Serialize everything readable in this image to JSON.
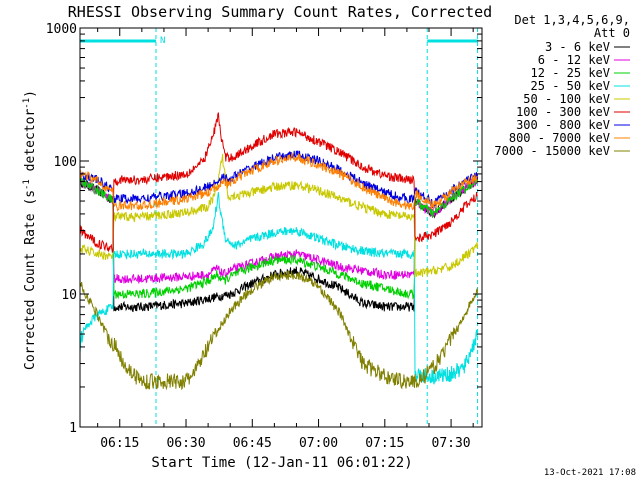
{
  "chart_data": {
    "type": "line",
    "title": "RHESSI Observing Summary Count Rates, Corrected",
    "xlabel": "Start Time (12-Jan-11 06:01:22)",
    "ylabel_main": "Corrected Count Rate (s",
    "ylabel_sup1": "-1",
    "ylabel_mid": " detector",
    "ylabel_sup2": "-1",
    "ylabel_end": ")",
    "y_scale": "log",
    "ylim": [
      1,
      1000
    ],
    "xlim_minutes": [
      6.0,
      97.0
    ],
    "x_ticks": [
      {
        "label": "06:15",
        "min": 15
      },
      {
        "label": "06:30",
        "min": 30
      },
      {
        "label": "06:45",
        "min": 45
      },
      {
        "label": "07:00",
        "min": 60
      },
      {
        "label": "07:15",
        "min": 75
      },
      {
        "label": "07:30",
        "min": 90
      }
    ],
    "y_ticks": [
      {
        "label": "1",
        "value": 1
      },
      {
        "label": "10",
        "value": 10
      },
      {
        "label": "100",
        "value": 100
      },
      {
        "label": "1000",
        "value": 1000
      }
    ],
    "legend": {
      "header1": "Det 1,3,4,5,6,9,",
      "header2": "Att 0",
      "placement": "right"
    },
    "annotations": {
      "night_marker": "N",
      "footer_date": "13-Oct-2021 17:08"
    },
    "night_intervals_minutes": [
      [
        6.0,
        23.2
      ],
      [
        84.6,
        96.0
      ]
    ],
    "series": [
      {
        "name": "3 - 6 keV",
        "color": "#000000",
        "x": [
          6,
          10,
          13.5,
          13.6,
          20,
          30,
          40,
          45,
          50,
          55,
          60,
          65,
          70,
          75,
          80,
          81.7,
          81.8,
          86,
          90,
          93,
          96
        ],
        "y": [
          70,
          60,
          50,
          8,
          8,
          8.5,
          10,
          12,
          14,
          15,
          13,
          11,
          8.5,
          8,
          8,
          8,
          50,
          40,
          52,
          62,
          72
        ]
      },
      {
        "name": "6 - 12 keV",
        "color": "#e000e0",
        "x": [
          6,
          10,
          13.5,
          13.6,
          20,
          30,
          35,
          37,
          38.5,
          40,
          45,
          50,
          55,
          60,
          65,
          70,
          75,
          80,
          81.7,
          81.8,
          86,
          90,
          93,
          96
        ],
        "y": [
          70,
          60,
          50,
          13,
          13,
          13.5,
          14,
          15.5,
          14,
          15,
          17,
          19,
          20,
          18,
          16,
          15,
          14,
          14,
          14,
          50,
          40,
          52,
          62,
          72
        ]
      },
      {
        "name": "12 - 25 keV",
        "color": "#00d000",
        "x": [
          6,
          10,
          13.5,
          13.6,
          20,
          30,
          35,
          37,
          38.5,
          40,
          45,
          50,
          55,
          60,
          65,
          70,
          75,
          80,
          81.7,
          81.8,
          86,
          90,
          93,
          96
        ],
        "y": [
          70,
          60,
          50,
          10,
          10,
          11,
          12.5,
          14,
          12.5,
          13.5,
          16,
          18,
          18,
          16,
          14,
          12,
          11,
          10,
          10,
          50,
          40,
          52,
          62,
          72
        ]
      },
      {
        "name": "25 - 50 keV",
        "color": "#00e0e0",
        "x": [
          6,
          6.5,
          8,
          10,
          13.5,
          13.6,
          20,
          30,
          34,
          36,
          37.3,
          38,
          39,
          41,
          45,
          50,
          55,
          60,
          65,
          70,
          75,
          80,
          81.7,
          81.8,
          86,
          90,
          93,
          96
        ],
        "y": [
          4,
          5,
          6,
          7,
          8,
          20,
          20,
          20,
          24,
          30,
          55,
          38,
          26,
          23,
          26,
          29,
          30,
          26,
          23,
          21,
          20,
          20,
          20,
          2.5,
          2.4,
          2.5,
          2.8,
          5
        ]
      },
      {
        "name": "50 - 100 keV",
        "color": "#c8c800",
        "x": [
          6,
          10,
          13.5,
          13.6,
          20,
          30,
          35,
          37,
          38.2,
          39.5,
          42,
          45,
          50,
          55,
          60,
          65,
          70,
          75,
          80,
          81.7,
          81.8,
          86,
          90,
          93,
          96
        ],
        "y": [
          22,
          20,
          19,
          38,
          38,
          41,
          45,
          60,
          110,
          55,
          55,
          58,
          64,
          66,
          60,
          52,
          45,
          40,
          38,
          38,
          14,
          15,
          16,
          19,
          23
        ]
      },
      {
        "name": "100 - 300 keV",
        "color": "#e00000",
        "x": [
          6,
          10,
          13.5,
          13.6,
          20,
          30,
          34,
          36,
          37.3,
          38,
          39,
          41,
          45,
          50,
          55,
          60,
          65,
          70,
          75,
          80,
          81.7,
          81.8,
          86,
          90,
          93,
          96
        ],
        "y": [
          30,
          24,
          22,
          72,
          72,
          80,
          100,
          150,
          220,
          150,
          105,
          108,
          130,
          160,
          165,
          140,
          115,
          90,
          78,
          72,
          72,
          26,
          28,
          35,
          45,
          55
        ]
      },
      {
        "name": "300 - 800 keV",
        "color": "#0000e0",
        "x": [
          6,
          10,
          13.5,
          13.6,
          20,
          30,
          35,
          37,
          38.2,
          39.5,
          42,
          45,
          50,
          55,
          60,
          65,
          70,
          75,
          80,
          81.7,
          81.8,
          86,
          90,
          93,
          96
        ],
        "y": [
          80,
          72,
          60,
          52,
          52,
          57,
          64,
          70,
          76,
          72,
          80,
          90,
          105,
          112,
          100,
          85,
          68,
          58,
          52,
          52,
          60,
          48,
          60,
          70,
          78
        ]
      },
      {
        "name": "800 - 7000 keV",
        "color": "#ff8000",
        "x": [
          6,
          10,
          13.5,
          13.6,
          20,
          30,
          35,
          37,
          38.2,
          39.5,
          42,
          45,
          50,
          55,
          60,
          65,
          70,
          75,
          80,
          81.7,
          81.8,
          86,
          90,
          93,
          96
        ],
        "y": [
          82,
          70,
          58,
          46,
          46,
          52,
          58,
          64,
          72,
          66,
          75,
          85,
          100,
          107,
          94,
          80,
          64,
          52,
          46,
          46,
          58,
          46,
          58,
          68,
          76
        ]
      },
      {
        "name": "7000 - 15000 keV",
        "color": "#808000",
        "x": [
          6,
          8,
          10,
          12,
          14,
          16,
          18,
          20,
          30,
          32,
          35,
          40,
          45,
          50,
          55,
          60,
          65,
          67,
          70,
          75,
          80,
          82,
          84,
          86,
          88,
          90,
          92,
          94,
          96
        ],
        "y": [
          12,
          9,
          7,
          5,
          4,
          3,
          2.5,
          2.2,
          2.2,
          2.6,
          4,
          7.5,
          11,
          13.5,
          14,
          11.5,
          7,
          5,
          3,
          2.4,
          2.2,
          2.2,
          2.4,
          2.8,
          3.5,
          4.6,
          6,
          8,
          10.5
        ]
      }
    ]
  }
}
